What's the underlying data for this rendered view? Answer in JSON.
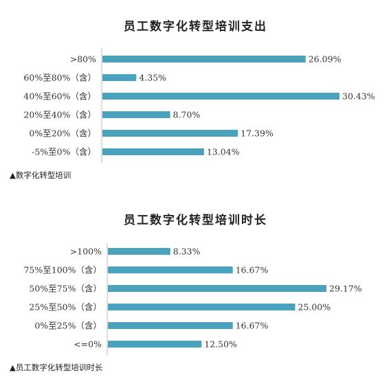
{
  "bar_color": "#4aa2bd",
  "axis_color": "#bdbdbd",
  "caption_marker": "▲",
  "chart_data": [
    {
      "type": "bar",
      "orientation": "horizontal",
      "title": "员工数字化转型培训支出",
      "categories": [
        ">80%",
        "60%至80%（含）",
        "40%至60%（含）",
        "20%至40%（含）",
        "0%至20%（含）",
        "-5%至0%（含）"
      ],
      "values": [
        26.09,
        4.35,
        30.43,
        8.7,
        17.39,
        13.04
      ],
      "value_labels": [
        "26.09%",
        "4.35%",
        "30.43%",
        "8.70%",
        "17.39%",
        "13.04%"
      ],
      "xlim": [
        0,
        30.43
      ],
      "grid": false,
      "caption": "数字化转型培训"
    },
    {
      "type": "bar",
      "orientation": "horizontal",
      "title": "员工数字化转型培训时长",
      "categories": [
        ">100%",
        "75%至100%（含）",
        "50%至75%（含）",
        "25%至50%（含）",
        "0%至25%（含）",
        "<=0%"
      ],
      "values": [
        8.33,
        16.67,
        29.17,
        25.0,
        16.67,
        12.5
      ],
      "value_labels": [
        "8.33%",
        "16.67%",
        "29.17%",
        "25.00%",
        "16.67%",
        "12.50%"
      ],
      "xlim": [
        0,
        29.17
      ],
      "grid": false,
      "caption": "员工数字化转型培训时长"
    }
  ]
}
